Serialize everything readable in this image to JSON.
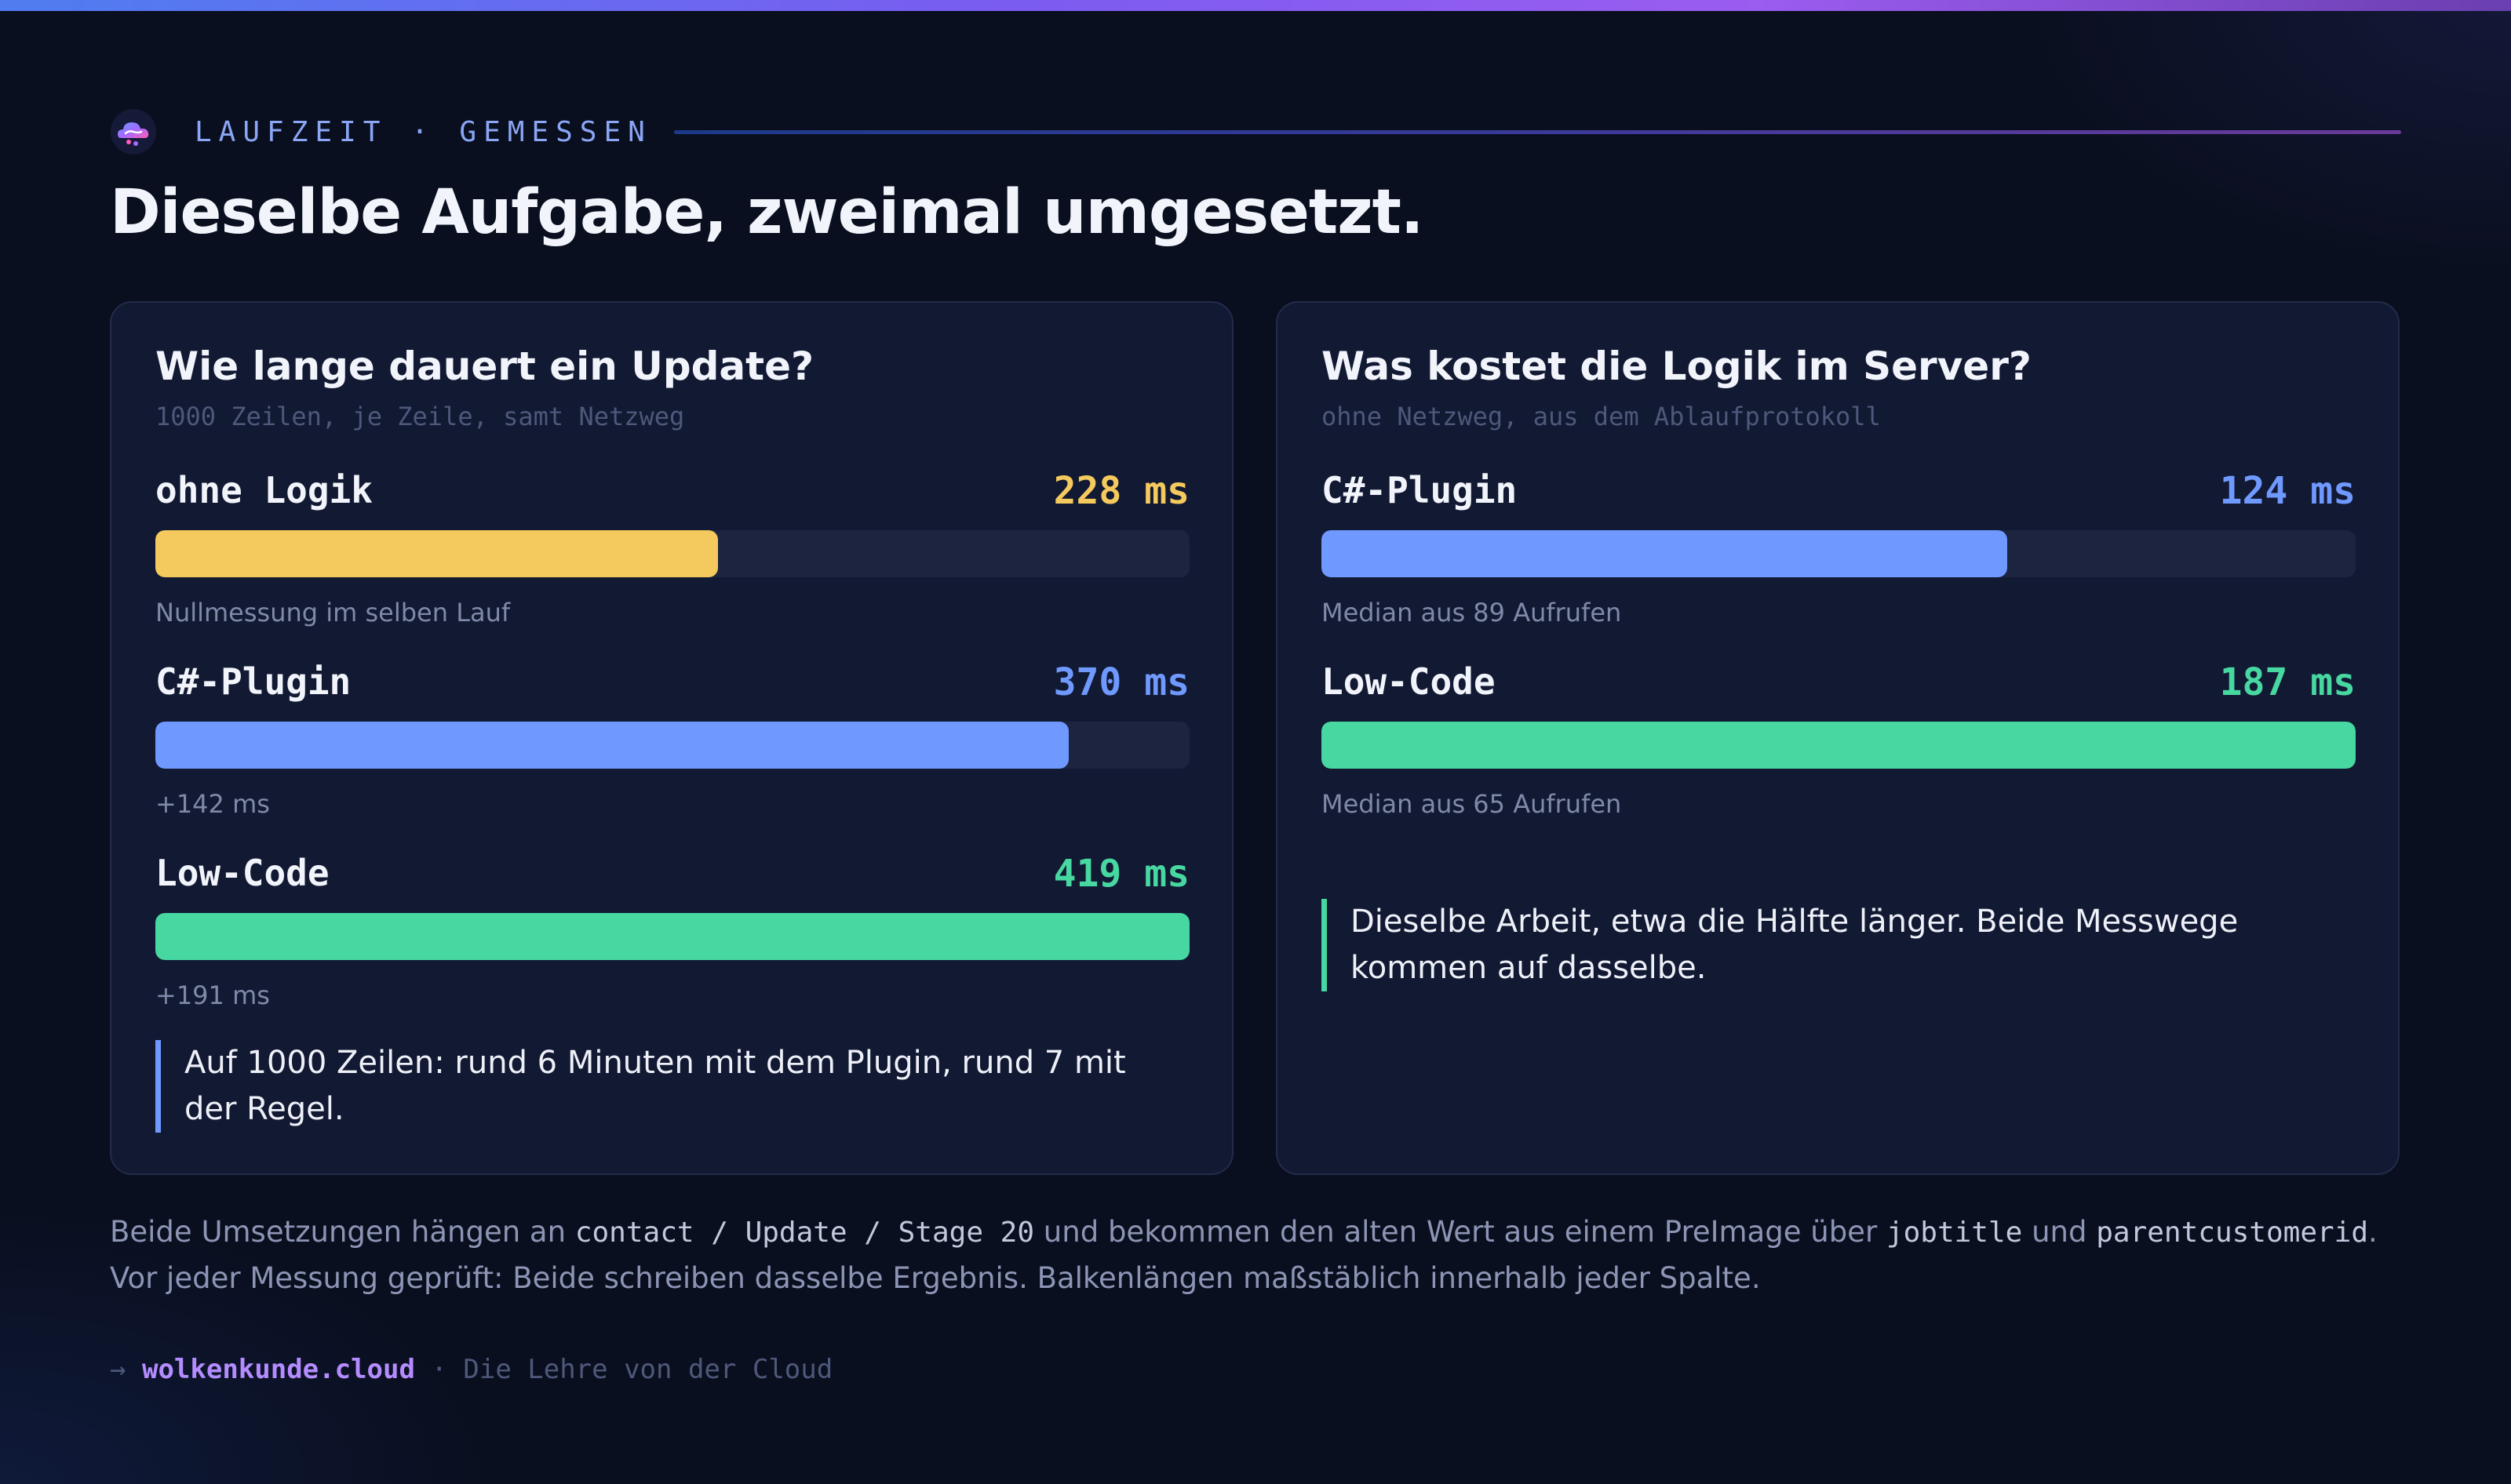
{
  "colors": {
    "baseline": "#f4c95d",
    "plugin": "#6f99ff",
    "lowcode": "#47d7a0"
  },
  "header": {
    "eyebrow": "LAUFZEIT · GEMESSEN",
    "title": "Dieselbe Aufgabe, zweimal umgesetzt."
  },
  "chart_data": [
    {
      "type": "bar",
      "orientation": "horizontal",
      "title": "Wie lange dauert ein Update?",
      "subtitle": "1000 Zeilen, je Zeile, samt Netzweg",
      "unit": "ms",
      "xlim": [
        0,
        419
      ],
      "bars": [
        {
          "label": "ohne Logik",
          "value": 228,
          "value_text": "228 ms",
          "note": "Nullmessung im selben Lauf",
          "color": "#f4c95d"
        },
        {
          "label": "C#-Plugin",
          "value": 370,
          "value_text": "370 ms",
          "note": "+142 ms",
          "color": "#6f99ff"
        },
        {
          "label": "Low-Code",
          "value": 419,
          "value_text": "419 ms",
          "note": "+191 ms",
          "color": "#47d7a0"
        }
      ],
      "callout": "Auf 1000 Zeilen: rund 6 Minuten mit dem Plugin, rund 7 mit der Regel."
    },
    {
      "type": "bar",
      "orientation": "horizontal",
      "title": "Was kostet die Logik im Server?",
      "subtitle": "ohne Netzweg, aus dem Ablaufprotokoll",
      "unit": "ms",
      "xlim": [
        0,
        187
      ],
      "bars": [
        {
          "label": "C#-Plugin",
          "value": 124,
          "value_text": "124 ms",
          "note": "Median aus 89 Aufrufen",
          "color": "#6f99ff"
        },
        {
          "label": "Low-Code",
          "value": 187,
          "value_text": "187 ms",
          "note": "Median aus 65 Aufrufen",
          "color": "#47d7a0"
        }
      ],
      "callout": "Dieselbe Arbeit, etwa die Hälfte länger. Beide Messwege kommen auf dasselbe."
    }
  ],
  "footer": {
    "t1": "Beide Umsetzungen hängen an ",
    "c1": "contact / Update / Stage 20",
    "t2": " und bekommen den alten Wert aus einem PreImage über ",
    "c2": "jobtitle",
    "t3": " und ",
    "c3": "parentcustomerid",
    "t4": ".",
    "line2": "Vor jeder Messung geprüft: Beide schreiben dasselbe Ergebnis. Balkenlängen maßstäblich innerhalb jeder Spalte."
  },
  "brand": {
    "arrow": "→",
    "site": "wolkenkunde.cloud",
    "tagline": "· Die Lehre von der Cloud"
  }
}
